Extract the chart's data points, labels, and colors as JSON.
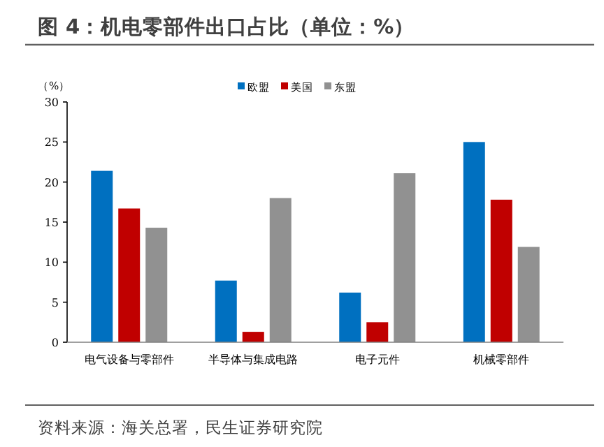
{
  "chart_data": {
    "type": "bar",
    "title": "图 4：机电零部件出口占比（单位：%）",
    "ylabel": "（%）",
    "categories": [
      "电气设备与零部件",
      "半导体与集成电路",
      "电子元件",
      "机械零部件"
    ],
    "series": [
      {
        "name": "欧盟",
        "color": "#0070c0",
        "values": [
          21.4,
          7.7,
          6.2,
          25.0
        ]
      },
      {
        "name": "美国",
        "color": "#c00000",
        "values": [
          16.7,
          1.3,
          2.5,
          17.8
        ]
      },
      {
        "name": "东盟",
        "color": "#919191",
        "values": [
          14.3,
          18.0,
          21.1,
          11.9
        ]
      }
    ],
    "ylim": [
      0,
      30
    ],
    "yticks": [
      0,
      5,
      10,
      15,
      20,
      25,
      30
    ],
    "legend": "top",
    "grid": false,
    "annotations": [
      "资料来源：海关总署，民生证券研究院"
    ]
  }
}
